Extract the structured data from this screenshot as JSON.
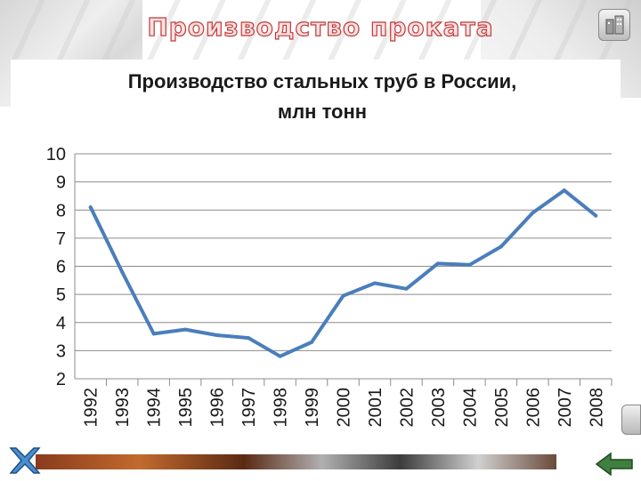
{
  "slide": {
    "title": "Производство проката"
  },
  "icons": {
    "home": "home-icon",
    "close": "close-x-icon",
    "back": "back-arrow-icon"
  },
  "chart_data": {
    "type": "line",
    "title": "Производство стальных труб в России,",
    "subtitle": "млн тонн",
    "xlabel": "",
    "ylabel": "",
    "categories": [
      "1992",
      "1993",
      "1994",
      "1995",
      "1996",
      "1997",
      "1998",
      "1999",
      "2000",
      "2001",
      "2002",
      "2003",
      "2004",
      "2005",
      "2006",
      "2007",
      "2008"
    ],
    "series": [
      {
        "values": [
          8.1,
          5.8,
          3.6,
          3.75,
          3.55,
          3.45,
          2.8,
          3.3,
          4.95,
          5.4,
          5.2,
          6.1,
          6.05,
          6.7,
          7.9,
          8.7,
          7.8
        ],
        "color": "#4a7ebb"
      }
    ],
    "ylim": [
      2,
      10
    ],
    "yticks": [
      2,
      3,
      4,
      5,
      6,
      7,
      8,
      9,
      10
    ],
    "grid": true,
    "legend": "none"
  }
}
